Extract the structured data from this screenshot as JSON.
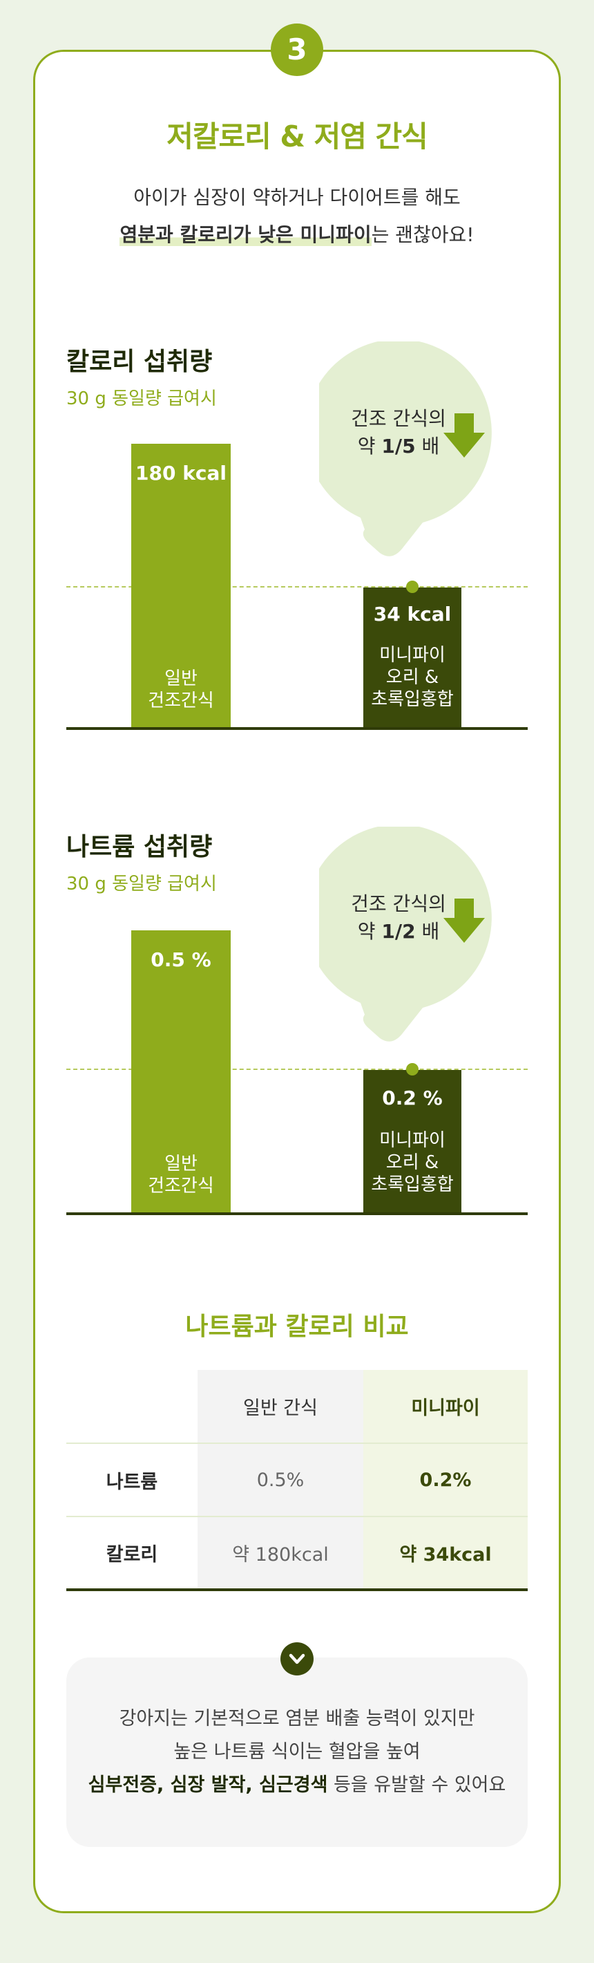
{
  "step": "3",
  "title": "저칼로리 & 저염 간식",
  "intro": {
    "line1": "아이가 심장이 약하거나 다이어트를 해도",
    "line2_bold": "염분과 칼로리가 낮은 미니파이",
    "line2_rest": "는 괜찮아요!"
  },
  "calorie_section": {
    "title": "칼로리 섭취량",
    "subtitle": "30 g 동일량 급여시",
    "bubble_line1": "건조 간식의",
    "bubble_prefix": "약 ",
    "bubble_ratio": "1/5",
    "bubble_suffix": " 배",
    "bar_general_value": "180 kcal",
    "bar_general_name_1": "일반",
    "bar_general_name_2": "건조간식",
    "bar_mini_value": "34 kcal",
    "bar_mini_name_1": "미니파이",
    "bar_mini_name_2": "오리 &",
    "bar_mini_name_3": "초록입홍합"
  },
  "sodium_section": {
    "title": "나트륨 섭취량",
    "subtitle": "30 g 동일량 급여시",
    "bubble_line1": "건조 간식의",
    "bubble_prefix": "약 ",
    "bubble_ratio": "1/2",
    "bubble_suffix": " 배",
    "bar_general_value": "0.5 %",
    "bar_general_name_1": "일반",
    "bar_general_name_2": "건조간식",
    "bar_mini_value": "0.2 %",
    "bar_mini_name_1": "미니파이",
    "bar_mini_name_2": "오리 &",
    "bar_mini_name_3": "초록입홍합"
  },
  "comparison": {
    "title": "나트륨과 칼로리 비교",
    "headers": [
      "",
      "일반 간식",
      "미니파이"
    ],
    "rows": [
      {
        "label": "나트륨",
        "general": "0.5%",
        "minipie": "0.2%"
      },
      {
        "label": "칼로리",
        "general": "약 180kcal",
        "minipie": "약 34kcal"
      }
    ]
  },
  "note": {
    "line1": "강아지는 기본적으로 염분 배출 능력이 있지만",
    "line2": "높은 나트륨 식이는 혈압을 높여",
    "line3_bold": "심부전증, 심장 발작, 심근경색",
    "line3_rest": " 등을 유발할 수 있어요"
  },
  "icons": {
    "bubble_arrow": "arrow-down-icon",
    "note_chevron": "chevron-down-icon"
  },
  "colors": {
    "accent": "#8fac1c",
    "dark": "#3b4a0a",
    "background": "#edf3e6",
    "bubble": "#e4efd2"
  }
}
